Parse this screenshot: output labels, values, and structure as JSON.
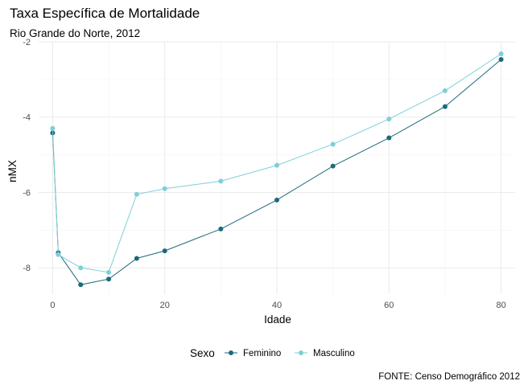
{
  "chart_data": {
    "type": "line",
    "title": "Taxa Específica de Mortalidade",
    "subtitle": "Rio Grande do Norte, 2012",
    "xlabel": "Idade",
    "ylabel": "nMX",
    "caption": "FONTE: Censo Demográfico 2012",
    "xlim": [
      -2.5,
      82.5
    ],
    "ylim": [
      -8.7,
      -2.0
    ],
    "x_ticks": [
      0,
      20,
      40,
      60,
      80
    ],
    "y_ticks": [
      -8,
      -6,
      -4,
      -2
    ],
    "grid": true,
    "legend": {
      "title": "Sexo",
      "position": "bottom"
    },
    "x": [
      0,
      1,
      5,
      10,
      15,
      20,
      30,
      40,
      50,
      60,
      70,
      80
    ],
    "series": [
      {
        "name": "Feminino",
        "color": "#1b6a7d",
        "values": [
          -4.42,
          -7.6,
          -8.45,
          -8.3,
          -7.75,
          -7.55,
          -6.97,
          -6.2,
          -5.3,
          -4.55,
          -3.72,
          -2.47
        ]
      },
      {
        "name": "Masculino",
        "color": "#7ecfd8",
        "values": [
          -4.3,
          -7.65,
          -8.0,
          -8.12,
          -6.05,
          -5.9,
          -5.7,
          -5.28,
          -4.72,
          -4.05,
          -3.3,
          -2.32
        ]
      }
    ]
  }
}
